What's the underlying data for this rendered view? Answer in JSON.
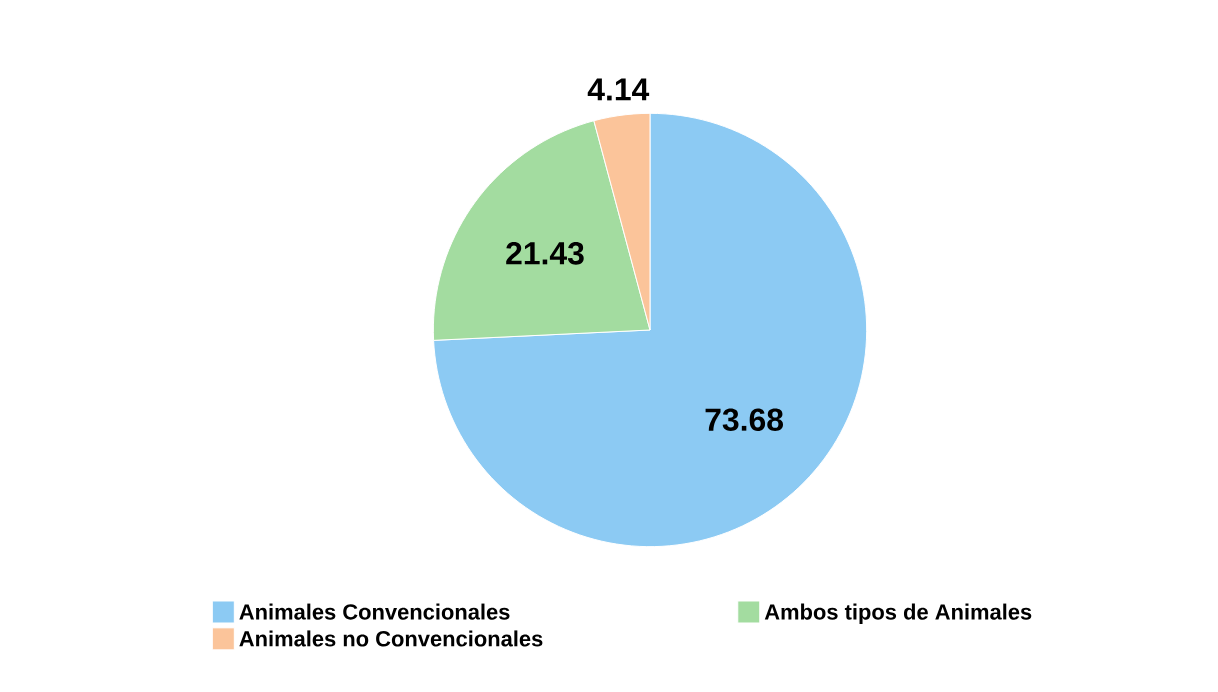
{
  "chart_data": {
    "type": "pie",
    "categories": [
      "Animales Convencionales",
      "Ambos tipos de Animales",
      "Animales no Convencionales"
    ],
    "values": [
      73.68,
      21.43,
      4.14
    ],
    "colors": [
      "#8ccaf3",
      "#a3dca0",
      "#fbc49a"
    ],
    "data_labels": true,
    "legend": "bottom"
  }
}
